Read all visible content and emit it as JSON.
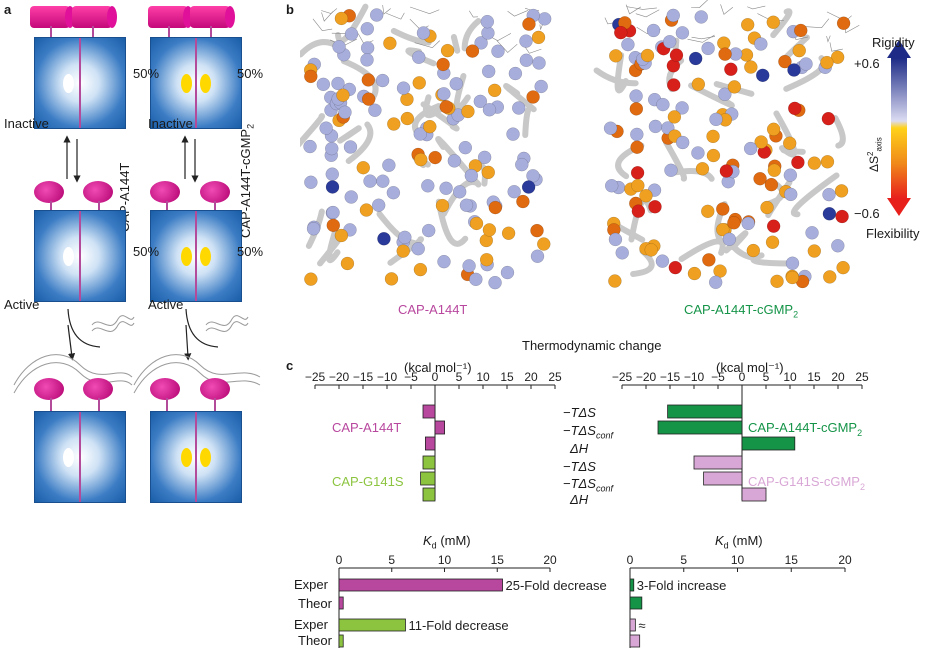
{
  "panels": {
    "a": "a",
    "b": "b",
    "c": "c"
  },
  "panel_a": {
    "percent_top": "50%",
    "percent_mid": "50%",
    "state_inactive": "Inactive",
    "state_active": "Active",
    "left_construct": "CAP-A144T",
    "right_construct_main": "CAP-A144T-cGMP",
    "right_construct_sub": "2"
  },
  "panel_b": {
    "left_label": "CAP-A144T",
    "right_label_main": "CAP-A144T-cGMP",
    "right_label_sub": "2",
    "scale_top": "Rigidity",
    "scale_bottom": "Flexibility",
    "scale_max": "+0.6",
    "scale_min": "−0.6",
    "scale_axis": "ΔS",
    "scale_axis_sup": "2",
    "scale_axis_sub": "axis",
    "colors": {
      "rigid": "#1d2b86",
      "mid": "#ffffff",
      "flex": "#e8201c",
      "yellow": "#ffd21a"
    }
  },
  "panel_c": {
    "title": "Thermodynamic change",
    "unit": "(kcal mol⁻¹)",
    "term_labels": [
      "−TΔS",
      "−TΔS",
      "ΔH"
    ],
    "term_conf_sub": "conf",
    "kd_label": "K",
    "kd_sub": "d",
    "kd_unit": "(mM)",
    "row_labels": [
      "Exper",
      "Theor",
      "Exper",
      "Theor"
    ],
    "colors": {
      "magenta": "#b8479e",
      "green_light": "#8cc43f",
      "green_dark": "#159448",
      "pink_light": "#d9a7d6"
    }
  },
  "chart_data": [
    {
      "type": "bar",
      "title": "",
      "xlabel": "(kcal mol⁻¹)",
      "xlim": [
        -25,
        25
      ],
      "ticks": [
        -25,
        -20,
        -15,
        -10,
        -5,
        0,
        5,
        10,
        15,
        20,
        25
      ],
      "tick_labels": [
        "−25",
        "−20",
        "−15",
        "−10",
        "−5",
        "0",
        "5",
        "10",
        "15",
        "20",
        "25"
      ],
      "categories": [
        "−TΔS",
        "−TΔS conf",
        "ΔH"
      ],
      "series": [
        {
          "name": "CAP-A144T",
          "values": [
            -2.5,
            2,
            -2
          ]
        },
        {
          "name": "CAP-G141S",
          "values": [
            -2.5,
            -3,
            -2.5
          ]
        }
      ]
    },
    {
      "type": "bar",
      "title": "",
      "xlabel": "(kcal mol⁻¹)",
      "xlim": [
        -25,
        25
      ],
      "ticks": [
        -25,
        -20,
        -15,
        -10,
        -5,
        0,
        5,
        10,
        15,
        20,
        25
      ],
      "tick_labels": [
        "−25",
        "−20",
        "−15",
        "−10",
        "−5",
        "0",
        "5",
        "10",
        "15",
        "20",
        "25"
      ],
      "categories": [
        "−TΔS",
        "−TΔS conf",
        "ΔH"
      ],
      "series": [
        {
          "name": "CAP-A144T-cGMP2",
          "values": [
            -15.5,
            -17.5,
            11
          ]
        },
        {
          "name": "CAP-G141S-cGMP2",
          "values": [
            -10,
            -8,
            5
          ]
        }
      ]
    },
    {
      "type": "bar",
      "title": "",
      "xlabel": "K d (mM)",
      "xlim": [
        0,
        20
      ],
      "ticks": [
        0,
        5,
        10,
        15,
        20
      ],
      "categories": [
        "Exper",
        "Theor",
        "Exper",
        "Theor"
      ],
      "values": [
        15.5,
        0.4,
        6.3,
        0.4
      ],
      "annotations": [
        "25-Fold decrease",
        "11-Fold decrease"
      ]
    },
    {
      "type": "bar",
      "title": "",
      "xlabel": "K d (mM)",
      "xlim": [
        0,
        20
      ],
      "ticks": [
        0,
        5,
        10,
        15,
        20
      ],
      "categories": [
        "Exper",
        "Theor",
        "Exper",
        "Theor"
      ],
      "values": [
        0.35,
        1.1,
        0.5,
        0.9
      ],
      "annotations": [
        "3-Fold increase",
        "≈"
      ]
    }
  ]
}
